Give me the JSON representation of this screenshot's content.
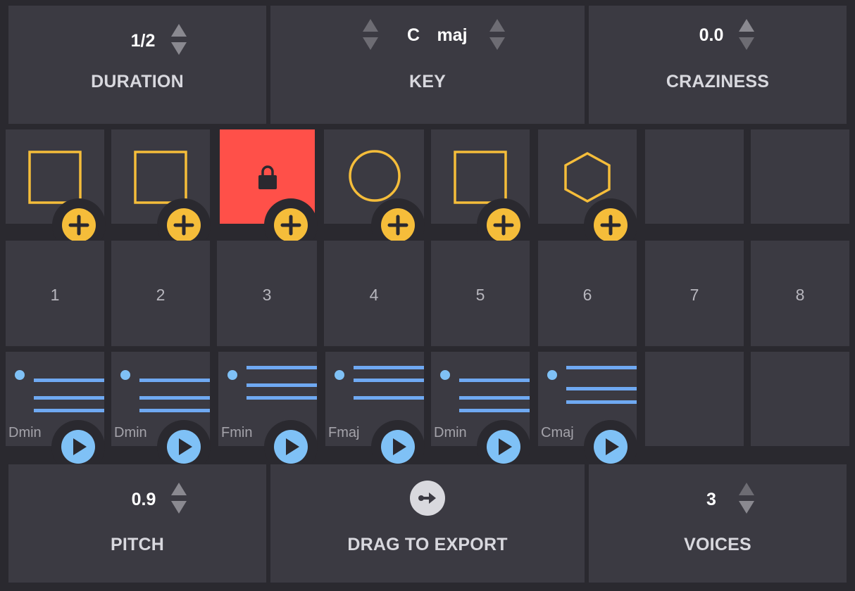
{
  "controls": {
    "duration": {
      "label": "DURATION",
      "value": "1/2"
    },
    "key": {
      "label": "KEY",
      "root": "C",
      "mode": "maj"
    },
    "craziness": {
      "label": "CRAZINESS",
      "value": "0.0"
    },
    "pitch": {
      "label": "PITCH",
      "value": "0.9"
    },
    "export": {
      "label": "DRAG TO EXPORT"
    },
    "voices": {
      "label": "VOICES",
      "value": "3"
    }
  },
  "slots": [
    {
      "number": "1",
      "shape": "square-icon",
      "locked": false,
      "chord": "Dmin"
    },
    {
      "number": "2",
      "shape": "square-icon",
      "locked": false,
      "chord": "Dmin"
    },
    {
      "number": "3",
      "shape": "lock-icon",
      "locked": true,
      "chord": "Fmin"
    },
    {
      "number": "4",
      "shape": "circle-icon",
      "locked": false,
      "chord": "Fmaj"
    },
    {
      "number": "5",
      "shape": "square-icon",
      "locked": false,
      "chord": "Dmin"
    },
    {
      "number": "6",
      "shape": "hexagon-icon",
      "locked": false,
      "chord": "Cmaj"
    },
    {
      "number": "7",
      "shape": "",
      "locked": false,
      "chord": ""
    },
    {
      "number": "8",
      "shape": "",
      "locked": false,
      "chord": ""
    }
  ],
  "colors": {
    "background": "#2a292f",
    "panel": "#3b3a42",
    "accent_yellow": "#f5bd3a",
    "locked_red": "#ff5049",
    "note_blue": "#6fa9f2",
    "play_blue": "#7fc1f6"
  }
}
